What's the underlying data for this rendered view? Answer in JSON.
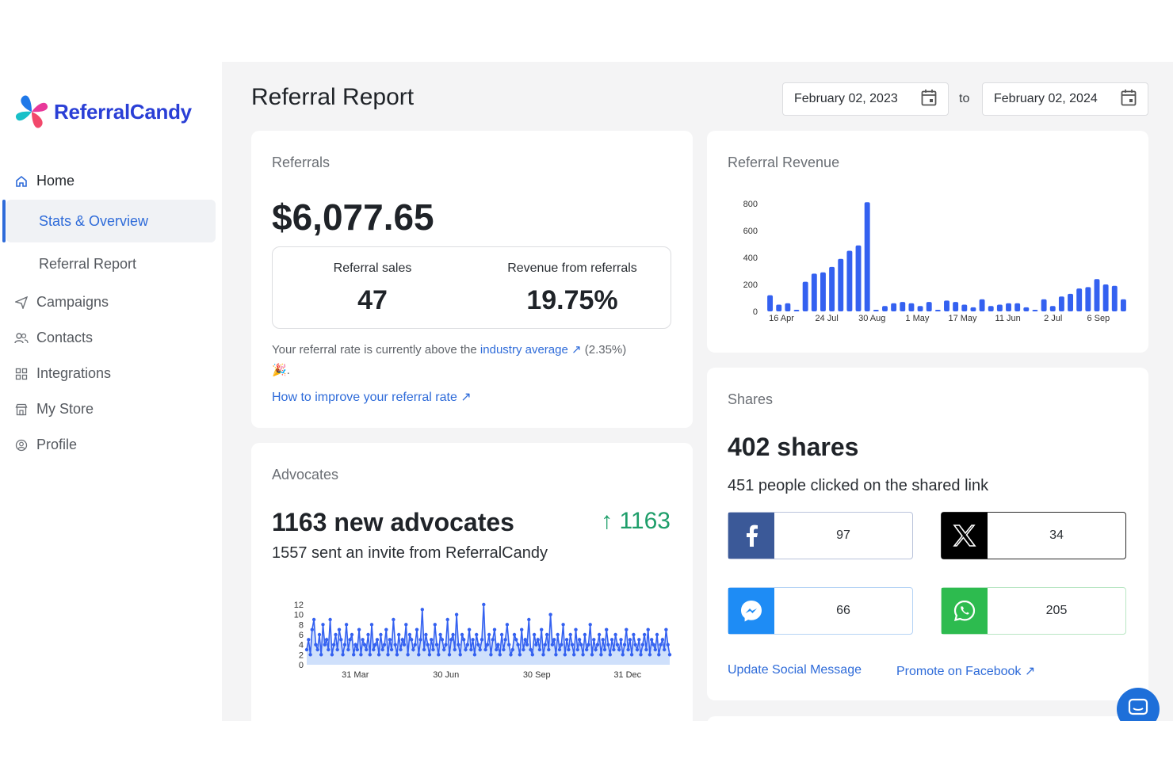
{
  "brand": {
    "name": "ReferralCandy"
  },
  "sidebar": {
    "items": [
      {
        "label": "Home",
        "icon": "home-icon"
      },
      {
        "label": "Stats & Overview"
      },
      {
        "label": "Referral Report"
      },
      {
        "label": "Campaigns",
        "icon": "send-icon"
      },
      {
        "label": "Contacts",
        "icon": "users-icon"
      },
      {
        "label": "Integrations",
        "icon": "grid-icon"
      },
      {
        "label": "My Store",
        "icon": "store-icon"
      },
      {
        "label": "Profile",
        "icon": "profile-icon"
      }
    ]
  },
  "header": {
    "title": "Referral Report",
    "date_from": "February 02, 2023",
    "date_to": "February 02, 2024",
    "to_label": "to"
  },
  "referrals": {
    "label": "Referrals",
    "amount": "$6,077.65",
    "sales_label": "Referral sales",
    "sales_value": "47",
    "revenue_label": "Revenue from referrals",
    "revenue_value": "19.75%",
    "note_prefix": "Your referral rate is currently above the",
    "note_link": "industry average ↗",
    "note_suffix": "(2.35%)",
    "note_emoji": "🎉.",
    "improve_link": "How to improve your referral rate ↗"
  },
  "advocates": {
    "label": "Advocates",
    "headline": "1163 new advocates",
    "delta": "↑ 1163",
    "sub": "1557 sent an invite from ReferralCandy"
  },
  "revenue_card": {
    "label": "Referral Revenue"
  },
  "shares": {
    "label": "Shares",
    "headline": "402 shares",
    "sub": "451 people clicked on the shared link",
    "facebook": "97",
    "x": "34",
    "messenger": "66",
    "whatsapp": "205",
    "update_link": "Update Social Message",
    "promote_link": "Promote on Facebook ↗"
  },
  "colors": {
    "accent": "#2e6bd9",
    "bar": "#3461f0",
    "facebook": "#3b5998",
    "x": "#000000",
    "messenger": "#1e8cf5",
    "whatsapp": "#2dbb4f"
  },
  "chart_data": [
    {
      "type": "bar",
      "title": "Referral Revenue",
      "ylim": [
        0,
        800
      ],
      "yticks": [
        0,
        200,
        400,
        600,
        800
      ],
      "xtick_labels": [
        "16 Apr",
        "24 Jul",
        "30 Aug",
        "1 May",
        "17 May",
        "11 Jun",
        "2 Jul",
        "6 Sep"
      ],
      "values": [
        120,
        50,
        60,
        0,
        220,
        280,
        290,
        330,
        390,
        450,
        490,
        810,
        10,
        40,
        60,
        70,
        60,
        40,
        70,
        10,
        80,
        70,
        50,
        30,
        90,
        40,
        50,
        60,
        60,
        30,
        10,
        90,
        40,
        110,
        130,
        170,
        180,
        240,
        200,
        190,
        90
      ]
    },
    {
      "type": "line",
      "title": "",
      "ylim": [
        0,
        12
      ],
      "yticks": [
        0,
        2,
        4,
        6,
        8,
        10,
        12
      ],
      "xtick_labels": [
        "31 Mar",
        "30 Jun",
        "30 Sep",
        "31 Dec"
      ],
      "values": [
        3,
        5,
        2,
        7,
        9,
        4,
        3,
        6,
        2,
        8,
        4,
        5,
        3,
        9,
        2,
        4,
        6,
        3,
        7,
        5,
        2,
        4,
        8,
        3,
        5,
        6,
        2,
        4,
        3,
        7,
        2,
        5,
        4,
        3,
        6,
        2,
        8,
        3,
        4,
        5,
        2,
        6,
        3,
        4,
        7,
        2,
        5,
        3,
        9,
        4,
        2,
        6,
        3,
        5,
        4,
        8,
        2,
        6,
        5,
        3,
        4,
        7,
        2,
        5,
        11,
        3,
        6,
        4,
        2,
        5,
        3,
        8,
        4,
        2,
        6,
        5,
        3,
        4,
        9,
        2,
        5,
        6,
        3,
        10,
        4,
        2,
        6,
        5,
        3,
        4,
        7,
        3,
        5,
        2,
        6,
        4,
        3,
        5,
        12,
        3,
        4,
        6,
        2,
        5,
        7,
        3,
        4,
        2,
        6,
        3,
        5,
        8,
        4,
        2,
        3,
        6,
        5,
        4,
        2,
        7,
        3,
        5,
        4,
        9,
        3,
        2,
        6,
        4,
        5,
        3,
        7,
        2,
        4,
        6,
        3,
        10,
        4,
        5,
        2,
        6,
        3,
        4,
        8,
        2,
        5,
        3,
        6,
        4,
        2,
        7,
        3,
        5,
        4,
        2,
        6,
        3,
        4,
        8,
        2,
        5,
        3,
        4,
        6,
        2,
        5,
        3,
        7,
        4,
        2,
        5,
        3,
        6,
        4,
        3,
        5,
        2,
        4,
        7,
        3,
        5,
        2,
        6,
        4,
        3,
        5,
        2,
        4,
        6,
        3,
        7,
        2,
        5,
        4,
        3,
        6,
        2,
        4,
        5,
        3,
        7,
        4,
        2
      ]
    }
  ]
}
